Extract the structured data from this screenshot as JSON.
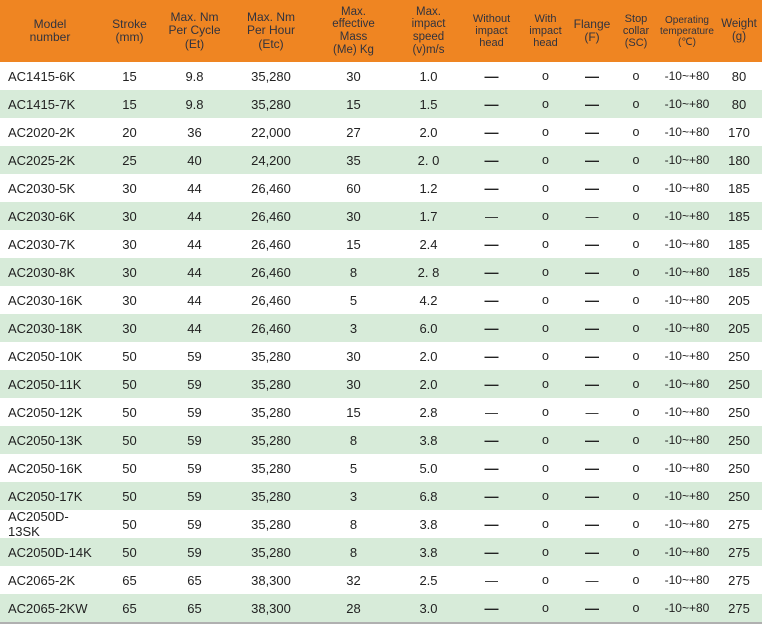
{
  "colors": {
    "header_bg": "#EF8522",
    "header_text": "#31333E",
    "row_alt_bg": "#D7EBD9",
    "body_text": "#222222",
    "bottom_line": "#B0B0B0"
  },
  "legend": {
    "not_available_symbol": "—",
    "available_symbol": "o"
  },
  "table": {
    "columns": [
      {
        "id": "model",
        "label": "Model\nnumber"
      },
      {
        "id": "stroke",
        "label": "Stroke\n(mm)"
      },
      {
        "id": "nm_cycle",
        "label": "Max. Nm\nPer Cycle\n(Et)"
      },
      {
        "id": "nm_hour",
        "label": "Max. Nm\nPer Hour\n(Etc)"
      },
      {
        "id": "mass",
        "label": "Max.\neffective\nMass\n(Me) Kg"
      },
      {
        "id": "speed",
        "label": "Max.\nimpact\nspeed\n(v)m/s"
      },
      {
        "id": "without_head",
        "label": "Without\nimpact\nhead"
      },
      {
        "id": "with_head",
        "label": "With\nimpact\nhead"
      },
      {
        "id": "flange",
        "label": "Flange\n(F)"
      },
      {
        "id": "stop_collar",
        "label": "Stop\ncollar\n(SC)"
      },
      {
        "id": "temp",
        "label": "Operating\ntemperature\n(℃)"
      },
      {
        "id": "weight",
        "label": "Weight\n(g)"
      }
    ],
    "rows": [
      {
        "model": "AC1415-6K",
        "stroke": "15",
        "nm_cycle": "9.8",
        "nm_hour": "35,280",
        "mass": "30",
        "speed": "1.0",
        "without_head": "—",
        "with_head": "o",
        "flange": "—",
        "stop_collar": "o",
        "temp": "-10~+80",
        "weight": "80",
        "dash_weight": "bold"
      },
      {
        "model": "AC1415-7K",
        "stroke": "15",
        "nm_cycle": "9.8",
        "nm_hour": "35,280",
        "mass": "15",
        "speed": "1.5",
        "without_head": "—",
        "with_head": "o",
        "flange": "—",
        "stop_collar": "o",
        "temp": "-10~+80",
        "weight": "80",
        "dash_weight": "bold"
      },
      {
        "model": "AC2020-2K",
        "stroke": "20",
        "nm_cycle": "36",
        "nm_hour": "22,000",
        "mass": "27",
        "speed": "2.0",
        "without_head": "—",
        "with_head": "o",
        "flange": "—",
        "stop_collar": "o",
        "temp": "-10~+80",
        "weight": "170",
        "dash_weight": "bold"
      },
      {
        "model": "AC2025-2K",
        "stroke": "25",
        "nm_cycle": "40",
        "nm_hour": "24,200",
        "mass": "35",
        "speed": "2. 0",
        "without_head": "—",
        "with_head": "o",
        "flange": "—",
        "stop_collar": "o",
        "temp": "-10~+80",
        "weight": "180",
        "dash_weight": "bold"
      },
      {
        "model": "AC2030-5K",
        "stroke": "30",
        "nm_cycle": "44",
        "nm_hour": "26,460",
        "mass": "60",
        "speed": "1.2",
        "without_head": "—",
        "with_head": "o",
        "flange": "—",
        "stop_collar": "o",
        "temp": "-10~+80",
        "weight": "185",
        "dash_weight": "bold"
      },
      {
        "model": "AC2030-6K",
        "stroke": "30",
        "nm_cycle": "44",
        "nm_hour": "26,460",
        "mass": "30",
        "speed": "1.7",
        "without_head": "—",
        "with_head": "o",
        "flange": "—",
        "stop_collar": "o",
        "temp": "-10~+80",
        "weight": "185",
        "dash_weight": "light"
      },
      {
        "model": "AC2030-7K",
        "stroke": "30",
        "nm_cycle": "44",
        "nm_hour": "26,460",
        "mass": "15",
        "speed": "2.4",
        "without_head": "—",
        "with_head": "o",
        "flange": "—",
        "stop_collar": "o",
        "temp": "-10~+80",
        "weight": "185",
        "dash_weight": "bold"
      },
      {
        "model": "AC2030-8K",
        "stroke": "30",
        "nm_cycle": "44",
        "nm_hour": "26,460",
        "mass": "8",
        "speed": "2. 8",
        "without_head": "—",
        "with_head": "o",
        "flange": "—",
        "stop_collar": "o",
        "temp": "-10~+80",
        "weight": "185",
        "dash_weight": "bold"
      },
      {
        "model": "AC2030-16K",
        "stroke": "30",
        "nm_cycle": "44",
        "nm_hour": "26,460",
        "mass": "5",
        "speed": "4.2",
        "without_head": "—",
        "with_head": "o",
        "flange": "—",
        "stop_collar": "o",
        "temp": "-10~+80",
        "weight": "205",
        "dash_weight": "bold"
      },
      {
        "model": "AC2030-18K",
        "stroke": "30",
        "nm_cycle": "44",
        "nm_hour": "26,460",
        "mass": "3",
        "speed": "6.0",
        "without_head": "—",
        "with_head": "o",
        "flange": "—",
        "stop_collar": "o",
        "temp": "-10~+80",
        "weight": "205",
        "dash_weight": "bold"
      },
      {
        "model": "AC2050-10K",
        "stroke": "50",
        "nm_cycle": "59",
        "nm_hour": "35,280",
        "mass": "30",
        "speed": "2.0",
        "without_head": "—",
        "with_head": "o",
        "flange": "—",
        "stop_collar": "o",
        "temp": "-10~+80",
        "weight": "250",
        "dash_weight": "bold"
      },
      {
        "model": "AC2050-11K",
        "stroke": "50",
        "nm_cycle": "59",
        "nm_hour": "35,280",
        "mass": "30",
        "speed": "2.0",
        "without_head": "—",
        "with_head": "o",
        "flange": "—",
        "stop_collar": "o",
        "temp": "-10~+80",
        "weight": "250",
        "dash_weight": "bold"
      },
      {
        "model": "AC2050-12K",
        "stroke": "50",
        "nm_cycle": "59",
        "nm_hour": "35,280",
        "mass": "15",
        "speed": "2.8",
        "without_head": "—",
        "with_head": "o",
        "flange": "—",
        "stop_collar": "o",
        "temp": "-10~+80",
        "weight": "250",
        "dash_weight": "light"
      },
      {
        "model": "AC2050-13K",
        "stroke": "50",
        "nm_cycle": "59",
        "nm_hour": "35,280",
        "mass": "8",
        "speed": "3.8",
        "without_head": "—",
        "with_head": "o",
        "flange": "—",
        "stop_collar": "o",
        "temp": "-10~+80",
        "weight": "250",
        "dash_weight": "bold"
      },
      {
        "model": "AC2050-16K",
        "stroke": "50",
        "nm_cycle": "59",
        "nm_hour": "35,280",
        "mass": "5",
        "speed": "5.0",
        "without_head": "—",
        "with_head": "o",
        "flange": "—",
        "stop_collar": "o",
        "temp": "-10~+80",
        "weight": "250",
        "dash_weight": "bold"
      },
      {
        "model": "AC2050-17K",
        "stroke": "50",
        "nm_cycle": "59",
        "nm_hour": "35,280",
        "mass": "3",
        "speed": "6.8",
        "without_head": "—",
        "with_head": "o",
        "flange": "—",
        "stop_collar": "o",
        "temp": "-10~+80",
        "weight": "250",
        "dash_weight": "bold"
      },
      {
        "model": "AC2050D-13SK",
        "stroke": "50",
        "nm_cycle": "59",
        "nm_hour": "35,280",
        "mass": "8",
        "speed": "3.8",
        "without_head": "—",
        "with_head": "o",
        "flange": "—",
        "stop_collar": "o",
        "temp": "-10~+80",
        "weight": "275",
        "dash_weight": "bold"
      },
      {
        "model": "AC2050D-14K",
        "stroke": "50",
        "nm_cycle": "59",
        "nm_hour": "35,280",
        "mass": "8",
        "speed": "3.8",
        "without_head": "—",
        "with_head": "o",
        "flange": "—",
        "stop_collar": "o",
        "temp": "-10~+80",
        "weight": "275",
        "dash_weight": "bold"
      },
      {
        "model": "AC2065-2K",
        "stroke": "65",
        "nm_cycle": "65",
        "nm_hour": "38,300",
        "mass": "32",
        "speed": "2.5",
        "without_head": "—",
        "with_head": "o",
        "flange": "—",
        "stop_collar": "o",
        "temp": "-10~+80",
        "weight": "275",
        "dash_weight": "light"
      },
      {
        "model": "AC2065-2KW",
        "stroke": "65",
        "nm_cycle": "65",
        "nm_hour": "38,300",
        "mass": "28",
        "speed": "3.0",
        "without_head": "—",
        "with_head": "o",
        "flange": "—",
        "stop_collar": "o",
        "temp": "-10~+80",
        "weight": "275",
        "dash_weight": "bold"
      }
    ]
  }
}
